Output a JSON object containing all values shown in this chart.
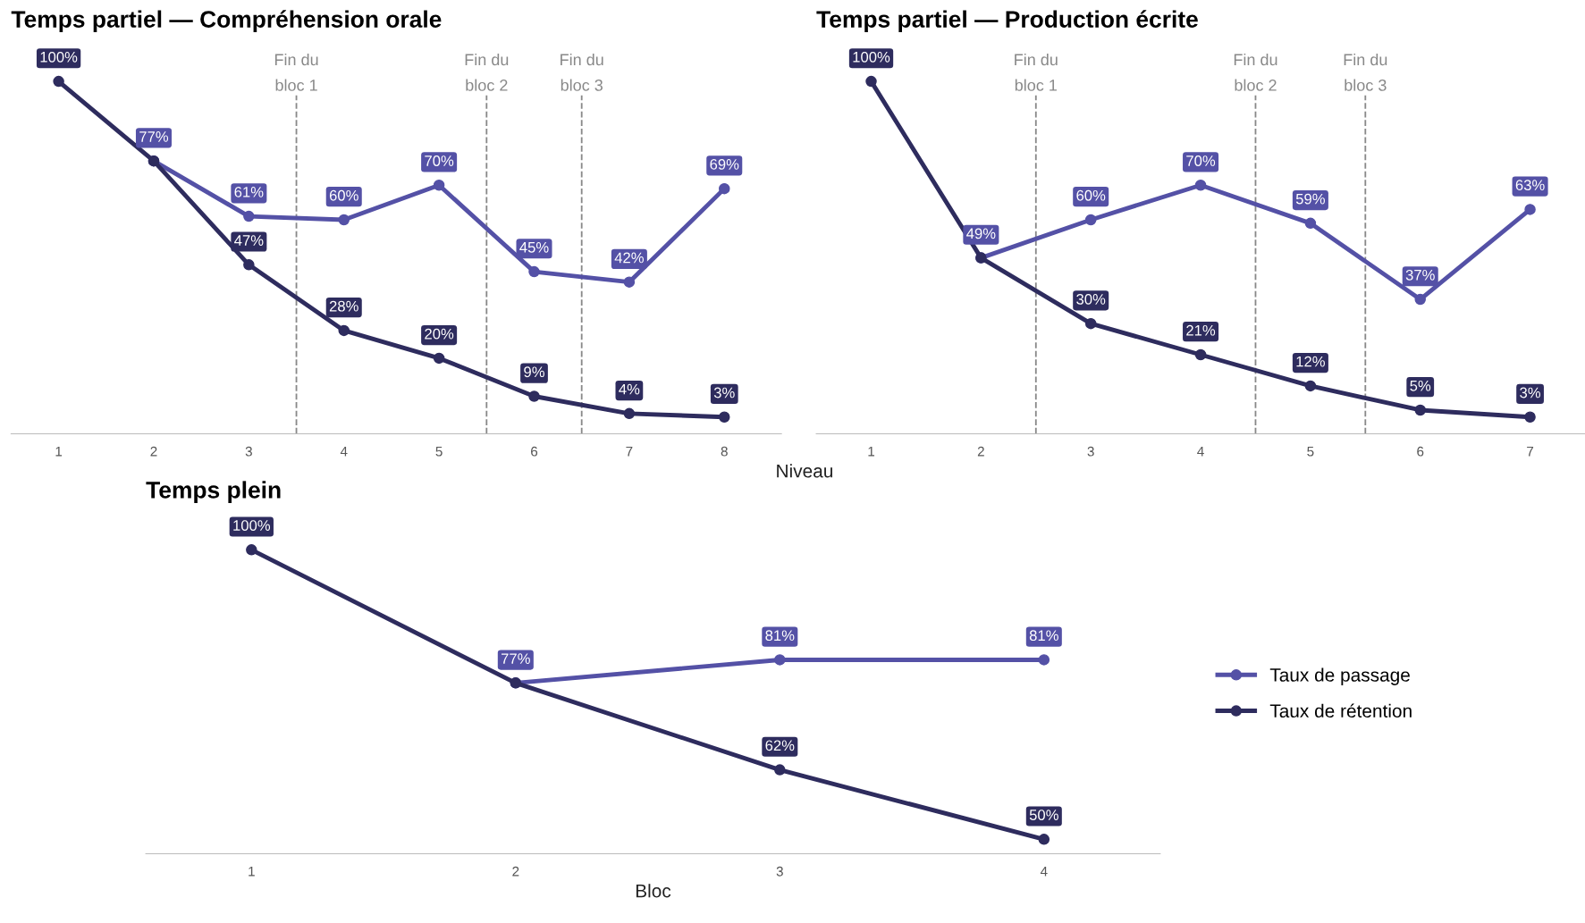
{
  "chart_data": [
    {
      "type": "line",
      "title": "Temps partiel — Compréhension orale",
      "xlabel": "Niveau",
      "xlim": [
        0.5,
        8.6
      ],
      "xticks": [
        1,
        2,
        3,
        4,
        5,
        6,
        7,
        8
      ],
      "grid": false,
      "marker": "circle",
      "line_style": "solid",
      "series": [
        {
          "color": "#5451a6",
          "x": [
            2,
            3,
            4,
            5,
            6,
            7,
            8
          ],
          "values": [
            77,
            61,
            60,
            70,
            45,
            42,
            69
          ],
          "value_labels": [
            "77%",
            "61%",
            "60%",
            "70%",
            "45%",
            "42%",
            "69%"
          ]
        },
        {
          "color": "#2e2c5e",
          "x": [
            1,
            2,
            3,
            4,
            5,
            6,
            7,
            8
          ],
          "values": [
            100,
            77,
            47,
            28,
            20,
            9,
            4,
            3
          ],
          "value_labels": [
            "100%",
            null,
            "47%",
            "28%",
            "20%",
            "9%",
            "4%",
            "3%"
          ]
        }
      ],
      "ref_lines": [
        {
          "axis": "x",
          "value": 3.5,
          "label": "Fin du\nbloc 1",
          "line_style": "dashed",
          "color": "#888888"
        },
        {
          "axis": "x",
          "value": 5.5,
          "label": "Fin du\nbloc 2",
          "line_style": "dashed",
          "color": "#888888"
        },
        {
          "axis": "x",
          "value": 6.5,
          "label": "Fin du\nbloc 3",
          "line_style": "dashed",
          "color": "#888888"
        }
      ]
    },
    {
      "type": "line",
      "title": "Temps partiel — Production écrite",
      "xlim": [
        0.5,
        7.5
      ],
      "xticks": [
        1,
        2,
        3,
        4,
        5,
        6,
        7
      ],
      "grid": false,
      "marker": "circle",
      "line_style": "solid",
      "series": [
        {
          "color": "#5451a6",
          "x": [
            2,
            3,
            4,
            5,
            6,
            7
          ],
          "values": [
            49,
            60,
            70,
            59,
            37,
            63
          ],
          "value_labels": [
            "49%",
            "60%",
            "70%",
            "59%",
            "37%",
            "63%"
          ]
        },
        {
          "color": "#2e2c5e",
          "x": [
            1,
            2,
            3,
            4,
            5,
            6,
            7
          ],
          "values": [
            100,
            49,
            30,
            21,
            12,
            5,
            3
          ],
          "value_labels": [
            "100%",
            null,
            "30%",
            "21%",
            "12%",
            "5%",
            "3%"
          ]
        }
      ],
      "ref_lines": [
        {
          "axis": "x",
          "value": 2.5,
          "label": "Fin du\nbloc 1",
          "line_style": "dashed",
          "color": "#888888"
        },
        {
          "axis": "x",
          "value": 4.5,
          "label": "Fin du\nbloc 2",
          "line_style": "dashed",
          "color": "#888888"
        },
        {
          "axis": "x",
          "value": 5.5,
          "label": "Fin du\nbloc 3",
          "line_style": "dashed",
          "color": "#888888"
        }
      ]
    },
    {
      "type": "line",
      "title": "Temps plein",
      "xlabel": "Bloc",
      "xlim": [
        0.6,
        4.44
      ],
      "xticks": [
        1,
        2,
        3,
        4
      ],
      "grid": false,
      "legend": "right",
      "marker": "circle",
      "line_style": "solid",
      "series": [
        {
          "name": "Taux de passage",
          "color": "#5451a6",
          "x": [
            2,
            3,
            4
          ],
          "values": [
            77,
            81,
            81
          ],
          "value_labels": [
            "77%",
            "81%",
            "81%"
          ]
        },
        {
          "name": "Taux de rétention",
          "color": "#2e2c5e",
          "x": [
            1,
            2,
            3,
            4
          ],
          "values": [
            100,
            77,
            62,
            50
          ],
          "value_labels": [
            "100%",
            null,
            "62%",
            "50%"
          ]
        }
      ]
    }
  ]
}
